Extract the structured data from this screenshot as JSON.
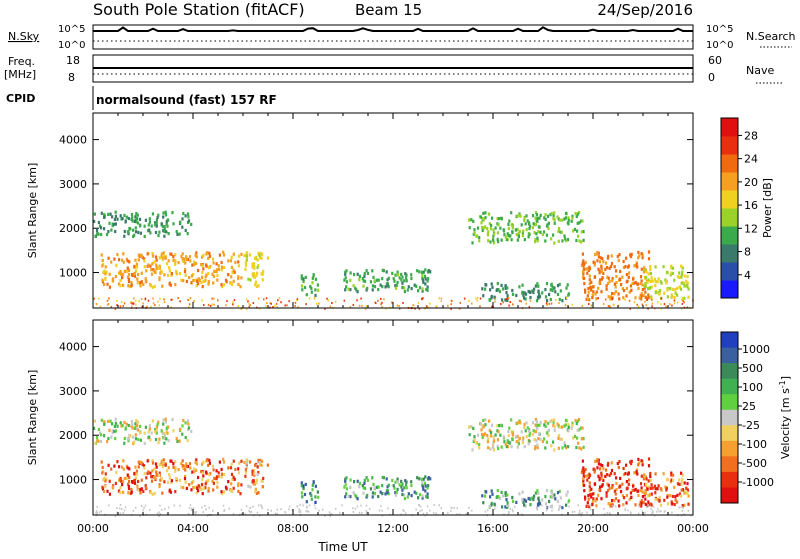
{
  "header": {
    "station": "South Pole Station (fitACF)",
    "beam": "Beam 15",
    "date": "24/Sep/2016"
  },
  "status_rows": {
    "nsky_label": "N.Sky",
    "nsky_ticks": [
      "10^5",
      "10^0"
    ],
    "nsearch_label": "N.Search",
    "nsearch_ticks": [
      "10^5",
      "10^0"
    ],
    "freq_label_1": "Freq.",
    "freq_label_2": "[MHz]",
    "freq_ticks": [
      "18",
      "8"
    ],
    "nave_label": "Nave",
    "nave_ticks": [
      "60",
      "0"
    ],
    "cpid_label": "CPID",
    "cpid_value": "normalsound (fast) 157 RF"
  },
  "chart_data": [
    {
      "type": "heatmap",
      "name": "power",
      "ylabel": "Slant Range [km]",
      "xlabel": "",
      "yticks": [
        1000,
        2000,
        3000,
        4000
      ],
      "ylim": [
        200,
        4600
      ],
      "xlim_hours": [
        0,
        24
      ],
      "colorbar": {
        "label": "Power [dB]",
        "ticks": [
          4,
          8,
          12,
          16,
          20,
          24,
          28
        ],
        "range": [
          0,
          31
        ],
        "colors": [
          "#1a1aff",
          "#2a4fa8",
          "#3a7a6a",
          "#3aaa4a",
          "#9ad22a",
          "#f0d020",
          "#f5a020",
          "#f06a10",
          "#e83010",
          "#e01010"
        ]
      },
      "echo_regions": [
        {
          "t0": 0.0,
          "t1": 3.9,
          "r0": 1850,
          "r1": 2400,
          "level": 9
        },
        {
          "t0": 0.3,
          "t1": 5.9,
          "r0": 700,
          "r1": 1500,
          "level": 20
        },
        {
          "t0": 6.0,
          "t1": 7.0,
          "r0": 700,
          "r1": 1500,
          "level": 16
        },
        {
          "t0": 8.3,
          "t1": 9.0,
          "r0": 500,
          "r1": 1000,
          "level": 10
        },
        {
          "t0": 10.0,
          "t1": 13.5,
          "r0": 600,
          "r1": 1100,
          "level": 10
        },
        {
          "t0": 15.0,
          "t1": 19.6,
          "r0": 1700,
          "r1": 2400,
          "level": 11
        },
        {
          "t0": 15.5,
          "t1": 19.0,
          "r0": 400,
          "r1": 800,
          "level": 8
        },
        {
          "t0": 19.5,
          "t1": 22.2,
          "r0": 400,
          "r1": 1500,
          "level": 22
        },
        {
          "t0": 22.0,
          "t1": 23.8,
          "r0": 400,
          "r1": 1200,
          "level": 14
        }
      ]
    },
    {
      "type": "heatmap",
      "name": "velocity",
      "ylabel": "Slant Range [km]",
      "xlabel": "Time UT",
      "yticks": [
        1000,
        2000,
        3000,
        4000
      ],
      "ylim": [
        200,
        4600
      ],
      "xticks": [
        "00:00",
        "04:00",
        "08:00",
        "12:00",
        "16:00",
        "20:00",
        "00:00"
      ],
      "xlim_hours": [
        0,
        24
      ],
      "colorbar": {
        "label": "Velocity [m s",
        "label_sup": "-1",
        "label_end": "]",
        "ticks": [
          "1000",
          "500",
          "100",
          "25",
          "-25",
          "-100",
          "-500",
          "-1000"
        ],
        "colors": [
          "#2040c0",
          "#3a60a0",
          "#3a8a5a",
          "#40b050",
          "#60d040",
          "#c8c8c8",
          "#f0d060",
          "#f5a030",
          "#f07020",
          "#e83010",
          "#e01010"
        ]
      },
      "echo_regions": [
        {
          "t0": 0.0,
          "t1": 3.9,
          "r0": 1850,
          "r1": 2400,
          "level": 5
        },
        {
          "t0": 0.3,
          "t1": 5.9,
          "r0": 700,
          "r1": 1500,
          "level": 8
        },
        {
          "t0": 6.0,
          "t1": 7.0,
          "r0": 700,
          "r1": 1500,
          "level": 7
        },
        {
          "t0": 8.3,
          "t1": 9.0,
          "r0": 500,
          "r1": 1000,
          "level": 2
        },
        {
          "t0": 10.0,
          "t1": 13.5,
          "r0": 600,
          "r1": 1100,
          "level": 3
        },
        {
          "t0": 15.0,
          "t1": 19.6,
          "r0": 1700,
          "r1": 2400,
          "level": 5
        },
        {
          "t0": 15.5,
          "t1": 19.0,
          "r0": 400,
          "r1": 800,
          "level": 3
        },
        {
          "t0": 19.5,
          "t1": 22.2,
          "r0": 400,
          "r1": 1500,
          "level": 9
        },
        {
          "t0": 22.0,
          "t1": 23.8,
          "r0": 400,
          "r1": 1200,
          "level": 8
        }
      ]
    }
  ]
}
